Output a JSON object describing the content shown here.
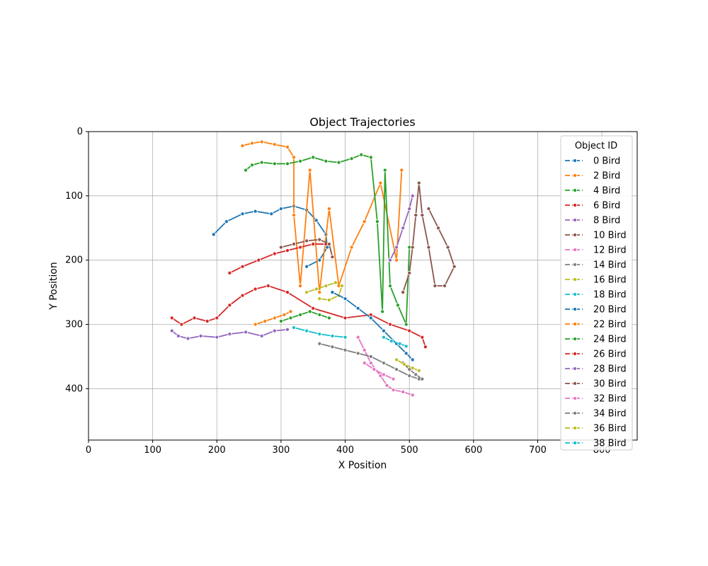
{
  "chart_data": {
    "type": "line",
    "title": "Object Trajectories",
    "xlabel": "X Position",
    "ylabel": "Y Position",
    "xlim": [
      0,
      855
    ],
    "ylim": [
      480,
      0
    ],
    "y_inverted": true,
    "grid": true,
    "x_ticks": [
      "0",
      "100",
      "200",
      "300",
      "400",
      "500",
      "600",
      "700",
      "800"
    ],
    "y_ticks": [
      "0",
      "100",
      "200",
      "300",
      "400"
    ],
    "legend": {
      "title": "Object ID",
      "placement": "upper right"
    },
    "series": [
      {
        "name": "0 Bird",
        "color": "#1f77b4",
        "points": [
          [
            195,
            160
          ],
          [
            215,
            140
          ],
          [
            240,
            128
          ],
          [
            260,
            124
          ],
          [
            285,
            128
          ],
          [
            300,
            120
          ],
          [
            320,
            116
          ],
          [
            340,
            122
          ],
          [
            355,
            138
          ],
          [
            370,
            160
          ],
          [
            372,
            180
          ],
          [
            360,
            200
          ],
          [
            340,
            210
          ]
        ]
      },
      {
        "name": "2 Bird",
        "color": "#ff7f0e",
        "points": [
          [
            240,
            22
          ],
          [
            255,
            18
          ],
          [
            270,
            16
          ],
          [
            290,
            20
          ],
          [
            310,
            24
          ],
          [
            320,
            40
          ],
          [
            320,
            130
          ],
          [
            330,
            240
          ],
          [
            345,
            60
          ],
          [
            360,
            250
          ],
          [
            375,
            120
          ],
          [
            390,
            240
          ],
          [
            410,
            180
          ],
          [
            430,
            140
          ],
          [
            455,
            80
          ],
          [
            480,
            200
          ],
          [
            488,
            60
          ]
        ]
      },
      {
        "name": "4 Bird",
        "color": "#2ca02c",
        "points": [
          [
            245,
            60
          ],
          [
            255,
            52
          ],
          [
            270,
            48
          ],
          [
            290,
            50
          ],
          [
            310,
            50
          ],
          [
            330,
            46
          ],
          [
            350,
            40
          ],
          [
            370,
            46
          ],
          [
            390,
            48
          ],
          [
            410,
            42
          ],
          [
            425,
            36
          ],
          [
            440,
            40
          ],
          [
            450,
            140
          ],
          [
            458,
            280
          ],
          [
            462,
            60
          ],
          [
            470,
            240
          ],
          [
            482,
            270
          ],
          [
            495,
            300
          ],
          [
            500,
            180
          ]
        ]
      },
      {
        "name": "6 Bird",
        "color": "#d62728",
        "points": [
          [
            130,
            290
          ],
          [
            145,
            300
          ],
          [
            165,
            290
          ],
          [
            185,
            295
          ],
          [
            200,
            290
          ],
          [
            220,
            270
          ],
          [
            240,
            255
          ],
          [
            260,
            245
          ],
          [
            280,
            240
          ],
          [
            310,
            250
          ],
          [
            350,
            275
          ],
          [
            400,
            290
          ],
          [
            440,
            285
          ],
          [
            470,
            300
          ],
          [
            500,
            310
          ],
          [
            520,
            320
          ],
          [
            525,
            335
          ]
        ]
      },
      {
        "name": "8 Bird",
        "color": "#9467bd",
        "points": [
          [
            130,
            310
          ],
          [
            140,
            318
          ],
          [
            155,
            322
          ],
          [
            175,
            318
          ],
          [
            200,
            320
          ],
          [
            220,
            315
          ],
          [
            245,
            312
          ],
          [
            270,
            318
          ],
          [
            290,
            310
          ],
          [
            310,
            308
          ]
        ]
      },
      {
        "name": "10 Bird",
        "color": "#8c564b",
        "points": [
          [
            490,
            250
          ],
          [
            500,
            220
          ],
          [
            505,
            180
          ],
          [
            510,
            130
          ],
          [
            515,
            80
          ],
          [
            520,
            130
          ],
          [
            530,
            180
          ],
          [
            540,
            240
          ],
          [
            555,
            240
          ],
          [
            570,
            210
          ],
          [
            560,
            180
          ],
          [
            545,
            150
          ],
          [
            530,
            120
          ]
        ]
      },
      {
        "name": "12 Bird",
        "color": "#e377c2",
        "points": [
          [
            420,
            320
          ],
          [
            430,
            340
          ],
          [
            440,
            360
          ],
          [
            455,
            380
          ],
          [
            465,
            395
          ],
          [
            475,
            402
          ],
          [
            490,
            405
          ],
          [
            505,
            410
          ]
        ]
      },
      {
        "name": "14 Bird",
        "color": "#7f7f7f",
        "points": [
          [
            360,
            330
          ],
          [
            380,
            335
          ],
          [
            400,
            340
          ],
          [
            420,
            345
          ],
          [
            440,
            350
          ],
          [
            460,
            360
          ],
          [
            480,
            370
          ],
          [
            500,
            380
          ],
          [
            515,
            385
          ]
        ]
      },
      {
        "name": "16 Bird",
        "color": "#bcbd22",
        "points": [
          [
            340,
            250
          ],
          [
            355,
            245
          ],
          [
            370,
            240
          ],
          [
            385,
            235
          ],
          [
            395,
            240
          ],
          [
            390,
            255
          ],
          [
            375,
            262
          ],
          [
            360,
            260
          ]
        ]
      },
      {
        "name": "18 Bird",
        "color": "#17becf",
        "points": [
          [
            320,
            305
          ],
          [
            340,
            310
          ],
          [
            360,
            315
          ],
          [
            380,
            318
          ],
          [
            400,
            320
          ]
        ]
      },
      {
        "name": "20 Bird",
        "color": "#1f77b4",
        "points": [
          [
            380,
            250
          ],
          [
            400,
            260
          ],
          [
            420,
            275
          ],
          [
            440,
            290
          ],
          [
            460,
            310
          ],
          [
            480,
            330
          ],
          [
            495,
            345
          ],
          [
            505,
            355
          ]
        ]
      },
      {
        "name": "22 Bird",
        "color": "#ff7f0e",
        "points": [
          [
            260,
            300
          ],
          [
            275,
            295
          ],
          [
            290,
            290
          ],
          [
            305,
            285
          ],
          [
            315,
            280
          ]
        ]
      },
      {
        "name": "24 Bird",
        "color": "#2ca02c",
        "points": [
          [
            300,
            295
          ],
          [
            315,
            290
          ],
          [
            330,
            285
          ],
          [
            345,
            280
          ],
          [
            360,
            285
          ],
          [
            375,
            290
          ]
        ]
      },
      {
        "name": "26 Bird",
        "color": "#d62728",
        "points": [
          [
            220,
            220
          ],
          [
            240,
            210
          ],
          [
            265,
            200
          ],
          [
            290,
            190
          ],
          [
            310,
            185
          ],
          [
            330,
            180
          ],
          [
            350,
            175
          ],
          [
            370,
            175
          ]
        ]
      },
      {
        "name": "28 Bird",
        "color": "#9467bd",
        "points": [
          [
            470,
            200
          ],
          [
            480,
            180
          ],
          [
            490,
            150
          ],
          [
            500,
            120
          ],
          [
            505,
            100
          ]
        ]
      },
      {
        "name": "30 Bird",
        "color": "#8c564b",
        "points": [
          [
            300,
            180
          ],
          [
            320,
            175
          ],
          [
            340,
            170
          ],
          [
            360,
            168
          ],
          [
            375,
            175
          ],
          [
            380,
            195
          ]
        ]
      },
      {
        "name": "32 Bird",
        "color": "#e377c2",
        "points": [
          [
            430,
            360
          ],
          [
            445,
            370
          ],
          [
            460,
            378
          ],
          [
            475,
            385
          ]
        ]
      },
      {
        "name": "34 Bird",
        "color": "#7f7f7f",
        "points": [
          [
            490,
            360
          ],
          [
            500,
            370
          ],
          [
            510,
            378
          ],
          [
            520,
            385
          ]
        ]
      },
      {
        "name": "36 Bird",
        "color": "#bcbd22",
        "points": [
          [
            480,
            355
          ],
          [
            492,
            362
          ],
          [
            505,
            368
          ],
          [
            515,
            372
          ]
        ]
      },
      {
        "name": "38 Bird",
        "color": "#17becf",
        "points": [
          [
            460,
            320
          ],
          [
            472,
            326
          ],
          [
            485,
            330
          ],
          [
            495,
            334
          ]
        ]
      }
    ]
  }
}
